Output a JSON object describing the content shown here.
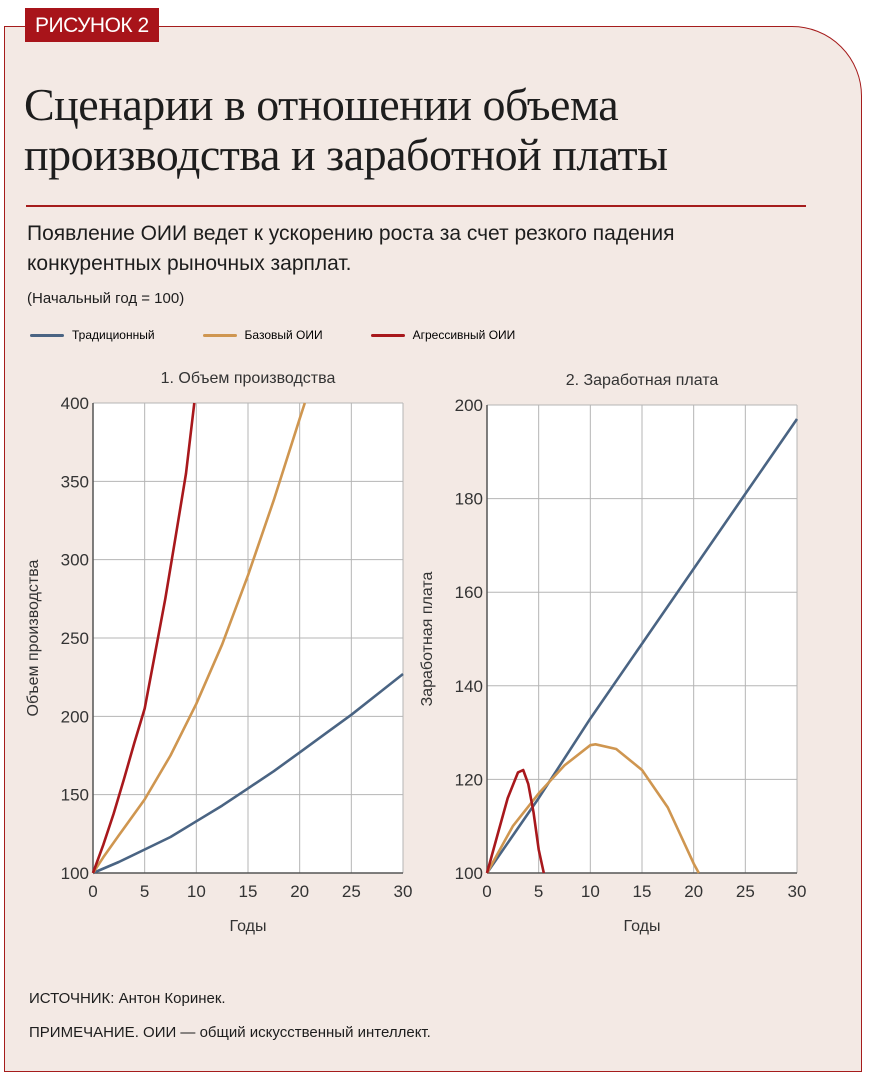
{
  "badge": "РИСУНОК 2",
  "title_line1": "Сценарии в отношении объема",
  "title_line2": "производства и заработной платы",
  "subtitle": "Появление ОИИ ведет к ускорению роста за счет резкого падения конкурентных рыночных зарплат.",
  "note": "(Начальный год = 100)",
  "source": "ИСТОЧНИК: Антон Коринек.",
  "remark": "ПРИМЕЧАНИЕ. ОИИ — общий искусственный интеллект.",
  "legend": [
    {
      "name": "Традиционный",
      "color": "#4a6483"
    },
    {
      "name": "Базовый ОИИ",
      "color": "#cf9650"
    },
    {
      "name": "Агрессивный ОИИ",
      "color": "#a8181c"
    }
  ],
  "chart_data": [
    {
      "type": "line",
      "title": "1. Объем производства",
      "xlabel": "Годы",
      "ylabel": "Объем производства",
      "xlim": [
        0,
        30
      ],
      "ylim": [
        100,
        400
      ],
      "xticks": [
        0,
        5,
        10,
        15,
        20,
        25,
        30
      ],
      "yticks": [
        100,
        150,
        200,
        250,
        300,
        350,
        400
      ],
      "grid": true,
      "series": [
        {
          "name": "Традиционный",
          "x": [
            0,
            2.5,
            5,
            7.5,
            10,
            12.5,
            15,
            17.5,
            20,
            22.5,
            25,
            27.5,
            30
          ],
          "y": [
            100,
            107,
            115,
            123,
            133,
            143,
            154,
            165,
            177,
            189,
            201,
            214,
            227
          ]
        },
        {
          "name": "Базовый ОИИ",
          "x": [
            0,
            1,
            2.5,
            5,
            7.5,
            10,
            12.5,
            15,
            17.5,
            20,
            20.5
          ],
          "y": [
            100,
            110,
            124,
            147,
            175,
            208,
            246,
            290,
            338,
            390,
            400
          ]
        },
        {
          "name": "Агрессивный ОИИ",
          "x": [
            0,
            1,
            2,
            3,
            4,
            5,
            6,
            7,
            8,
            9,
            9.8
          ],
          "y": [
            100,
            118,
            138,
            160,
            183,
            205,
            240,
            275,
            315,
            355,
            400
          ]
        }
      ]
    },
    {
      "type": "line",
      "title": "2. Заработная плата",
      "xlabel": "Годы",
      "ylabel": "Заработная плата",
      "xlim": [
        0,
        30
      ],
      "ylim": [
        100,
        200
      ],
      "xticks": [
        0,
        5,
        10,
        15,
        20,
        25,
        30
      ],
      "yticks": [
        100,
        120,
        140,
        160,
        180,
        200
      ],
      "grid": true,
      "series": [
        {
          "name": "Традиционный",
          "x": [
            0,
            5,
            10,
            15,
            20,
            25,
            30
          ],
          "y": [
            100,
            116,
            133,
            149,
            165,
            181,
            197
          ]
        },
        {
          "name": "Базовый ОИИ",
          "x": [
            0,
            2.5,
            5,
            7.5,
            10,
            10.5,
            12.5,
            15,
            17.5,
            20,
            20.5
          ],
          "y": [
            100,
            110,
            117,
            123,
            127.3,
            127.5,
            126.5,
            122,
            114,
            102,
            100
          ]
        },
        {
          "name": "Агрессивный ОИИ",
          "x": [
            0,
            1,
            2,
            3,
            3.5,
            4,
            4.5,
            5,
            5.5
          ],
          "y": [
            100,
            108,
            116,
            121.5,
            122,
            119,
            113,
            105,
            100
          ]
        }
      ]
    }
  ]
}
